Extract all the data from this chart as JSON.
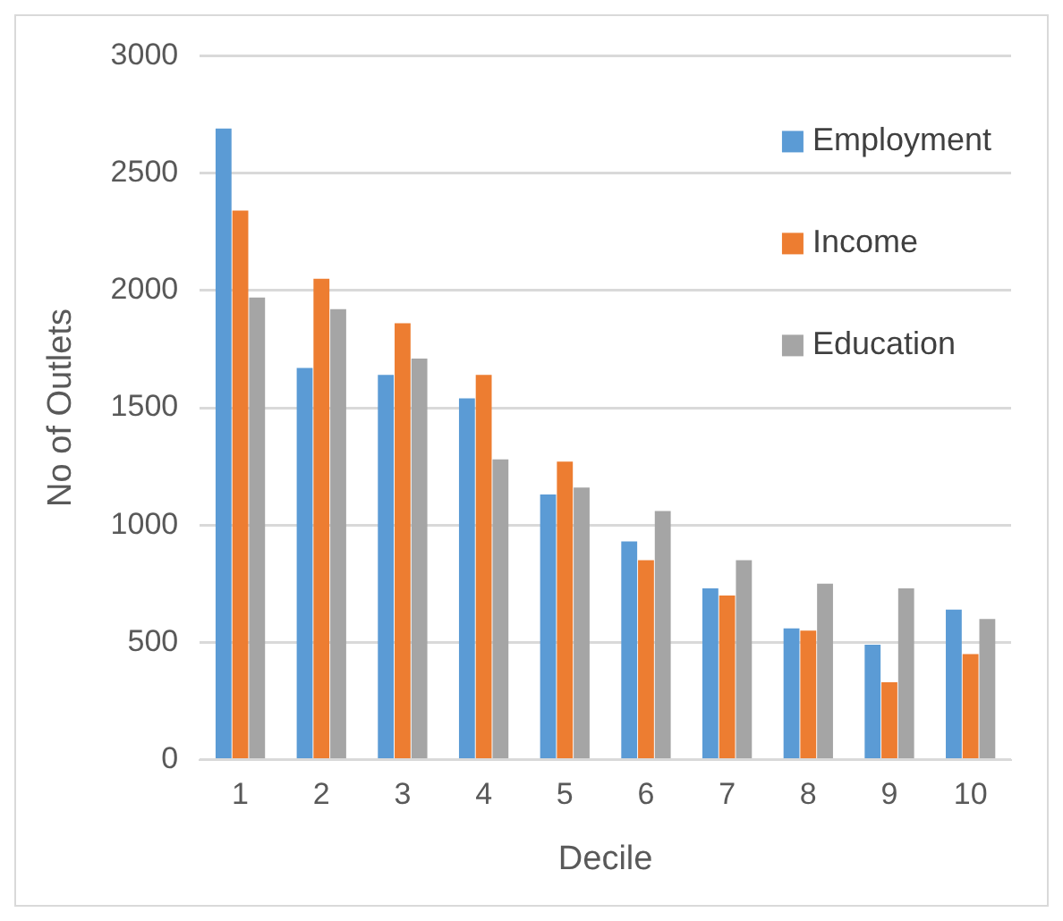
{
  "chart_data": {
    "type": "bar",
    "xlabel": "Decile",
    "ylabel": "No of Outlets",
    "categories": [
      "1",
      "2",
      "3",
      "4",
      "5",
      "6",
      "7",
      "8",
      "9",
      "10"
    ],
    "series": [
      {
        "name": "Employment",
        "color": "#5b9bd5",
        "values": [
          2690,
          1670,
          1640,
          1540,
          1130,
          930,
          730,
          560,
          490,
          640
        ]
      },
      {
        "name": "Income",
        "color": "#ed7d31",
        "values": [
          2340,
          2050,
          1860,
          1640,
          1270,
          850,
          700,
          550,
          330,
          450
        ]
      },
      {
        "name": "Education",
        "color": "#a5a5a5",
        "values": [
          1970,
          1920,
          1710,
          1280,
          1160,
          1060,
          850,
          750,
          730,
          600
        ]
      }
    ],
    "ylim": [
      0,
      3000
    ],
    "yticks": [
      0,
      500,
      1000,
      1500,
      2000,
      2500,
      3000
    ],
    "grid": "y",
    "legend": "top right"
  }
}
